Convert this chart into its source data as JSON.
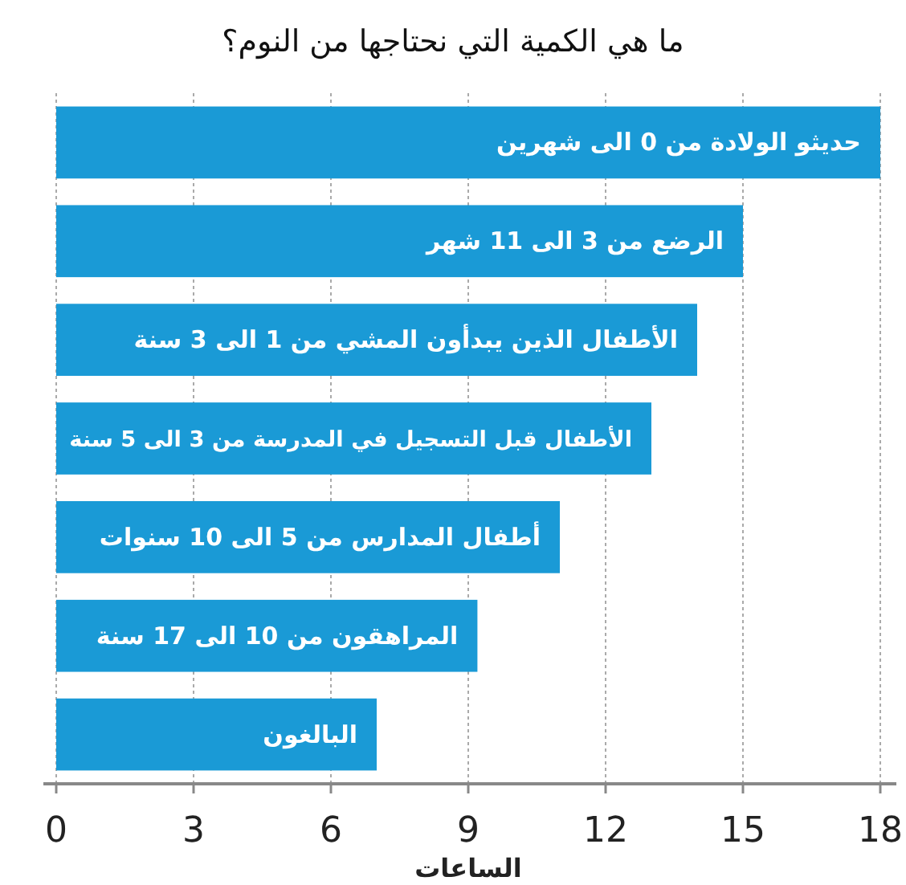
{
  "chart_data": {
    "type": "bar",
    "orientation": "horizontal",
    "title": "ما هي الكمية التي نحتاجها من النوم؟",
    "xlabel": "الساعات",
    "categories": [
      "حديثو الولادة من 0 الى شهرين",
      "الرضع من 3 الى 11 شهر",
      "الأطفال الذين يبدأون المشي من 1 الى 3 سنة",
      "الأطفال قبل التسجيل في المدرسة من 3 الى 5 سنة",
      "أطفال المدارس من 5 الى 10 سنوات",
      "المراهقون من 10 الى 17 سنة",
      "البالغون"
    ],
    "values": [
      18,
      15,
      14,
      13,
      11,
      9.2,
      7
    ],
    "color": "#1a9ad6",
    "xlim": [
      0,
      18
    ],
    "xticks": [
      0,
      3,
      6,
      9,
      12,
      15,
      18
    ],
    "grid": "x"
  }
}
